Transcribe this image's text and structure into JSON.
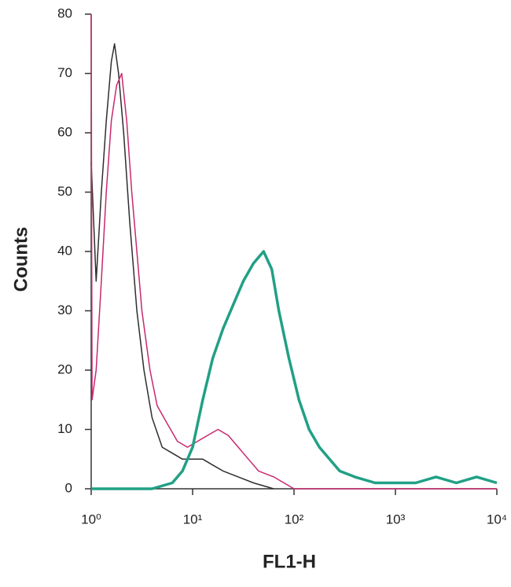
{
  "chart_data": {
    "type": "line",
    "xlabel": "FL1-H",
    "ylabel": "Counts",
    "xscale": "log",
    "xlim": [
      1,
      10000
    ],
    "xticks": [
      {
        "value": 1,
        "label": "10⁰"
      },
      {
        "value": 10,
        "label": "10¹"
      },
      {
        "value": 100,
        "label": "10²"
      },
      {
        "value": 1000,
        "label": "10³"
      },
      {
        "value": 10000,
        "label": "10⁴"
      }
    ],
    "ylim": [
      0,
      80
    ],
    "yticks": [
      0,
      10,
      20,
      30,
      40,
      50,
      60,
      70,
      80
    ],
    "series": [
      {
        "color": "#2e2e2e",
        "width": 1.5,
        "x": [
          1,
          1.12,
          1.26,
          1.41,
          1.58,
          1.7,
          1.86,
          2.09,
          2.4,
          2.82,
          3.31,
          3.98,
          5.01,
          6.31,
          7.94,
          10,
          12.6,
          15.8,
          20,
          28.2,
          39.8,
          63
        ],
        "values": [
          55,
          35,
          50,
          62,
          72,
          75,
          70,
          60,
          45,
          30,
          20,
          12,
          7,
          6,
          5,
          5,
          5,
          4,
          3,
          2,
          1,
          0
        ]
      },
      {
        "color": "#c8286e",
        "width": 1.5,
        "x": [
          1,
          1.02,
          1.12,
          1.26,
          1.41,
          1.58,
          1.78,
          2.0,
          2.24,
          2.51,
          2.82,
          3.16,
          3.8,
          4.47,
          5.62,
          7.08,
          8.91,
          11.2,
          14.1,
          17.8,
          22.4,
          28.2,
          35.5,
          44.7,
          63.1,
          100,
          316,
          10000
        ],
        "values": [
          80,
          15,
          20,
          35,
          50,
          62,
          68,
          70,
          62,
          50,
          40,
          30,
          20,
          14,
          11,
          8,
          7,
          8,
          9,
          10,
          9,
          7,
          5,
          3,
          2,
          0,
          0,
          0
        ]
      },
      {
        "color": "#21a085",
        "width": 3.5,
        "x": [
          1,
          3.98,
          6.31,
          7.94,
          10,
          12.6,
          15.8,
          20,
          25.1,
          31.6,
          39.8,
          50.1,
          60.3,
          70.8,
          89.1,
          112,
          141,
          178,
          224,
          282,
          398,
          631,
          1000,
          1585,
          2512,
          3981,
          6310,
          10000
        ],
        "values": [
          0,
          0,
          1,
          3,
          7,
          15,
          22,
          27,
          31,
          35,
          38,
          40,
          37,
          30,
          22,
          15,
          10,
          7,
          5,
          3,
          2,
          1,
          1,
          1,
          2,
          1,
          2,
          1
        ]
      }
    ]
  }
}
